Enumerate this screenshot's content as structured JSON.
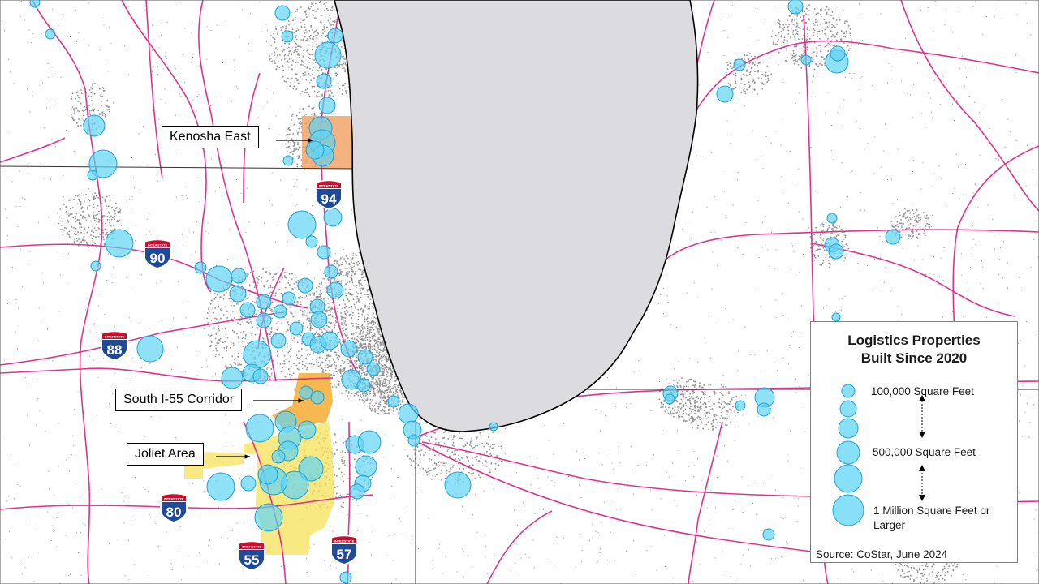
{
  "map": {
    "colors": {
      "lake": "#dcdce0",
      "lake_outline": "#000000",
      "highway": "#e0328c",
      "bubble_fill": "#5fd4f5",
      "bubble_stroke": "#1da1d6",
      "kenosha_area": "#f2a46a",
      "i55_area": "#f5a623",
      "joliet_area": "#f7e25a",
      "urban": "#3a3a3a",
      "state_line": "#333333"
    },
    "callouts": [
      {
        "id": "kenosha",
        "label": "Kenosha East"
      },
      {
        "id": "i55",
        "label": "South I-55 Corridor"
      },
      {
        "id": "joliet",
        "label": "Joliet Area"
      }
    ],
    "shields": [
      {
        "id": "i94",
        "number": "94",
        "banner": "INTERSTATE"
      },
      {
        "id": "i90",
        "number": "90",
        "banner": "INTERSTATE"
      },
      {
        "id": "i88",
        "number": "88",
        "banner": "INTERSTATE"
      },
      {
        "id": "i80",
        "number": "80",
        "banner": "INTERSTATE"
      },
      {
        "id": "i55",
        "number": "55",
        "banner": "INTERSTATE"
      },
      {
        "id": "i57",
        "number": "57",
        "banner": "INTERSTATE"
      }
    ]
  },
  "legend": {
    "title_line1": "Logistics Properties",
    "title_line2": "Built Since 2020",
    "label_small": "100,000 Square Feet",
    "label_mid": "500,000 Square Feet",
    "label_large_line1": "1 Million  Square Feet or",
    "label_large_line2": "Larger",
    "source": "Source: CoStar, June 2024"
  }
}
